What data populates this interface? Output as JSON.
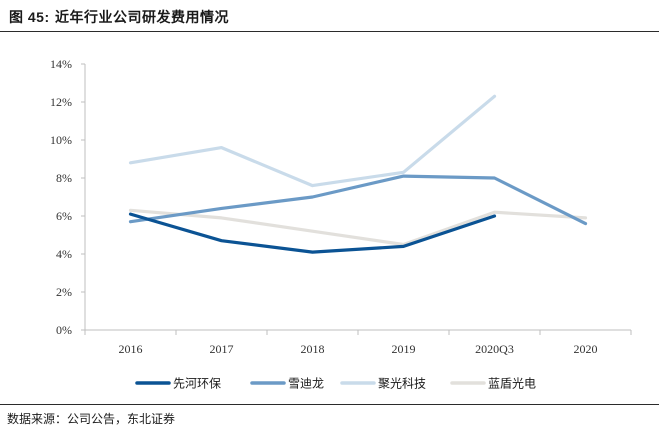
{
  "figure": {
    "label": "图 45:",
    "title": "近年行业公司研发费用情况",
    "source": "数据来源：公司公告，东北证券"
  },
  "chart_data": {
    "type": "line",
    "categories": [
      "2016",
      "2017",
      "2018",
      "2019",
      "2020Q3",
      "2020"
    ],
    "ylim": [
      0,
      14
    ],
    "yticks": [
      "0%",
      "2%",
      "4%",
      "6%",
      "8%",
      "10%",
      "12%",
      "14%"
    ],
    "grid": false,
    "legend_position": "bottom",
    "series": [
      {
        "name": "先河环保",
        "color": "#0b5394",
        "values": [
          6.1,
          4.7,
          4.1,
          4.4,
          6.0,
          null
        ]
      },
      {
        "name": "雪迪龙",
        "color": "#6b9ac6",
        "values": [
          5.7,
          6.4,
          7.0,
          8.1,
          8.0,
          5.6
        ]
      },
      {
        "name": "聚光科技",
        "color": "#c9dbea",
        "values": [
          8.8,
          9.6,
          7.6,
          8.3,
          12.3,
          null
        ]
      },
      {
        "name": "蓝盾光电",
        "color": "#e2e0dc",
        "values": [
          6.3,
          5.9,
          5.2,
          4.5,
          6.2,
          5.9
        ]
      }
    ]
  }
}
